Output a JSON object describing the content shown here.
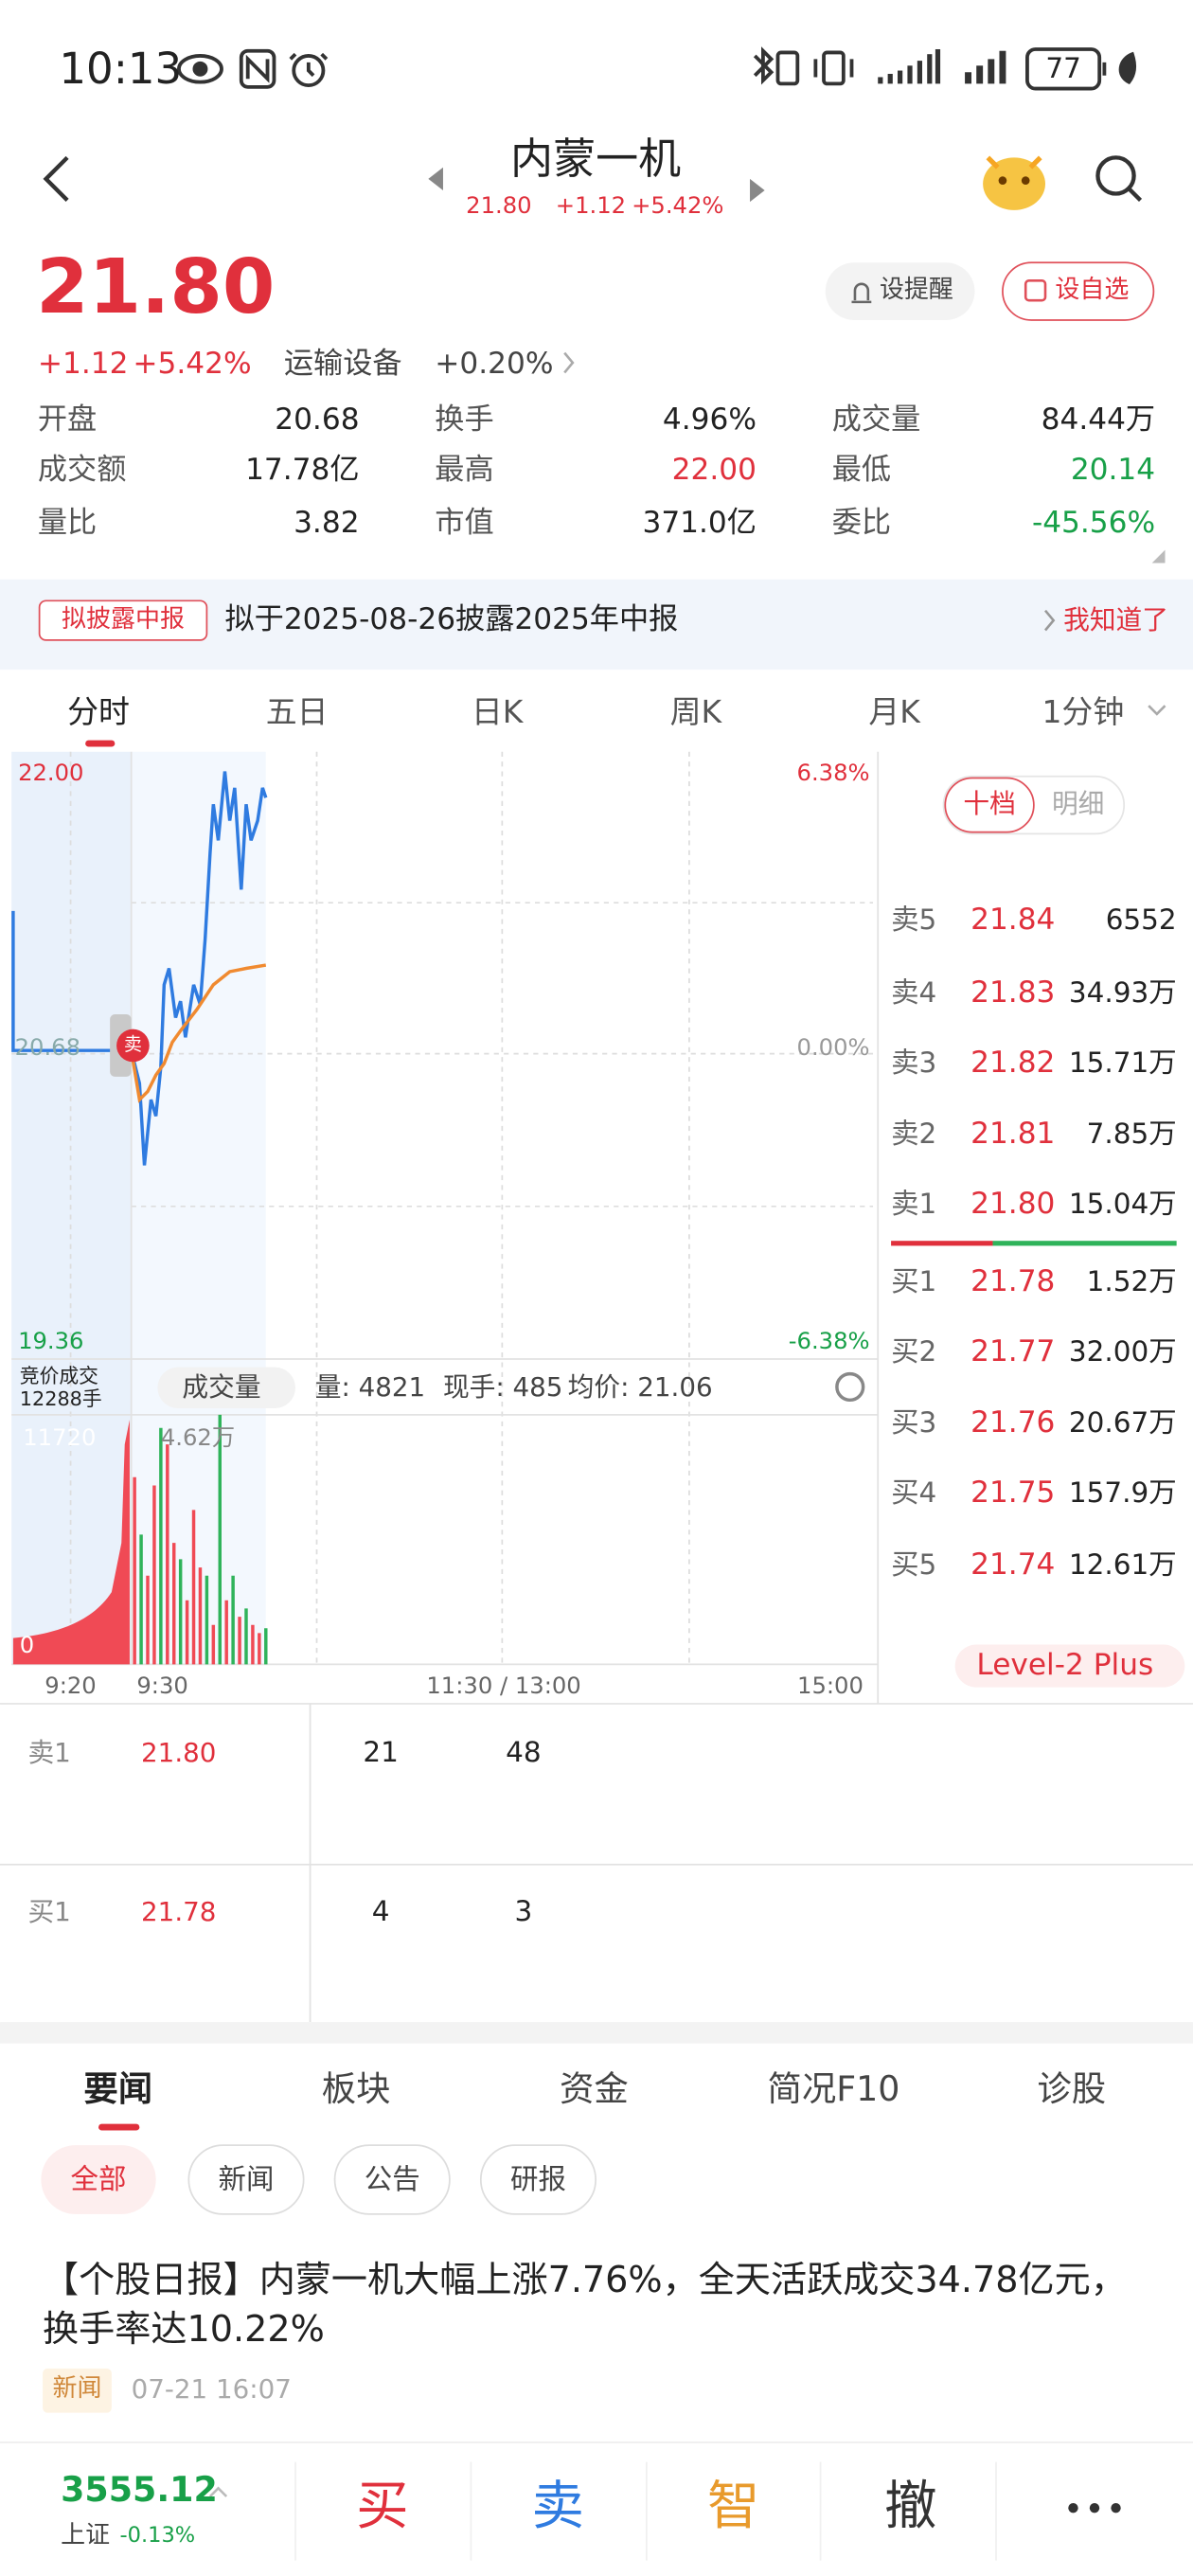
{
  "status_bar": {
    "time": "10:13",
    "battery": "77"
  },
  "header": {
    "title": "内蒙一机",
    "price": "21.80",
    "change": "+1.12",
    "change_pct": "+5.42%"
  },
  "quote": {
    "price": "21.80",
    "change": "+1.12",
    "change_pct": "+5.42%",
    "sector": "运输设备",
    "sector_change": "+0.20%",
    "buttons": [
      "设提醒",
      "设自选"
    ],
    "stats": [
      [
        "开盘",
        "20.68"
      ],
      [
        "换手",
        "4.96%"
      ],
      [
        "成交量",
        "84.44万"
      ],
      [
        "成交额",
        "17.78亿"
      ],
      [
        "最高",
        "22.00"
      ],
      [
        "最低",
        "20.14"
      ],
      [
        "量比",
        "3.82"
      ],
      [
        "市值",
        "371.0亿"
      ],
      [
        "委比",
        "-45.56%"
      ]
    ]
  },
  "notice": {
    "tag": "拟披露中报",
    "text": "拟于2025-08-26披露2025年中报",
    "action": "我知道了"
  },
  "chart_tabs": [
    "分时",
    "五日",
    "日K",
    "周K",
    "月K",
    "1分钟"
  ],
  "chart": {
    "price_high": "22.00",
    "price_low": "19.36",
    "pct_high": "6.38%",
    "pct_zero": "0.00%",
    "pct_low": "-6.38%",
    "prev_close": "20.68",
    "marker": "卖",
    "auction_label": "竞价成交",
    "auction_volume": "12288手",
    "volume_selector": "成交量",
    "volume_stats": [
      "量: 4821",
      "现手: 485",
      "均价: 21.06"
    ],
    "volume_max_left": "11720",
    "volume_max": "4.62万",
    "volume_zero": "0",
    "time_labels": [
      "9:20",
      "9:30",
      "11:30 / 13:00",
      "15:00"
    ]
  },
  "order_book": {
    "tabs": [
      "十档",
      "明细"
    ],
    "asks": [
      [
        "卖5",
        "21.84",
        "6552"
      ],
      [
        "卖4",
        "21.83",
        "34.93万"
      ],
      [
        "卖3",
        "21.82",
        "15.71万"
      ],
      [
        "卖2",
        "21.81",
        "7.85万"
      ],
      [
        "卖1",
        "21.80",
        "15.04万"
      ]
    ],
    "bids": [
      [
        "买1",
        "21.78",
        "1.52万"
      ],
      [
        "买2",
        "21.77",
        "32.00万"
      ],
      [
        "买3",
        "21.76",
        "20.67万"
      ],
      [
        "买4",
        "21.75",
        "157.9万"
      ],
      [
        "买5",
        "21.74",
        "12.61万"
      ]
    ],
    "footer": "Level-2 Plus"
  },
  "ticks": [
    [
      "卖1",
      "21.80",
      "21",
      "48"
    ],
    [
      "买1",
      "21.78",
      "4",
      "3"
    ]
  ],
  "news": {
    "tabs": [
      "要闻",
      "板块",
      "资金",
      "简况F10",
      "诊股"
    ],
    "filters": [
      "全部",
      "新闻",
      "公告",
      "研报"
    ],
    "items": [
      {
        "title": "【个股日报】内蒙一机大幅上涨7.76%，全天活跃成交34.78亿元，换手率达10.22%",
        "tag": "新闻",
        "time": "07-21 16:07"
      }
    ]
  },
  "bottom_bar": {
    "index_value": "3555.12",
    "index_name": "上证",
    "index_change": "-0.13%",
    "actions": [
      "买",
      "卖",
      "智",
      "撤"
    ]
  }
}
